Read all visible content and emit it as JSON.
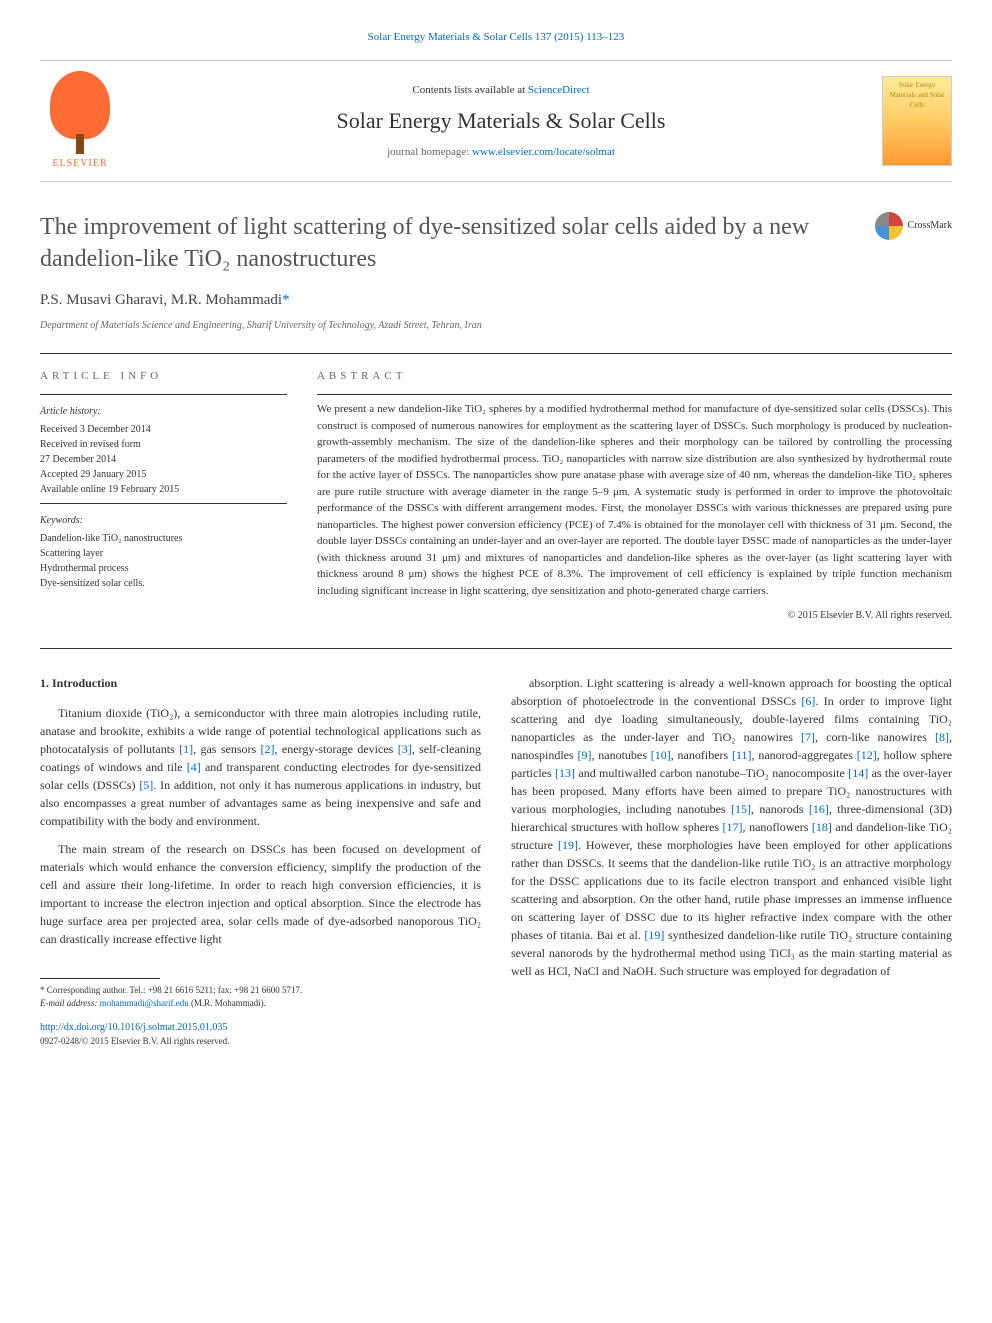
{
  "header_link": "Solar Energy Materials & Solar Cells 137 (2015) 113–123",
  "banner": {
    "contents_line_prefix": "Contents lists available at ",
    "contents_link": "ScienceDirect",
    "journal_title": "Solar Energy Materials & Solar Cells",
    "homepage_prefix": "journal homepage: ",
    "homepage_link": "www.elsevier.com/locate/solmat",
    "elsevier_label": "ELSEVIER",
    "cover_text": "Solar Energy Materials and Solar Cells"
  },
  "crossmark_label": "CrossMark",
  "article": {
    "title": "The improvement of light scattering of dye-sensitized solar cells aided by a new dandelion-like TiO₂ nanostructures",
    "authors": "P.S. Musavi Gharavi, M.R. Mohammadi",
    "corresponding_mark": "*",
    "affiliation": "Department of Materials Science and Engineering, Sharif University of Technology, Azadi Street, Tehran, Iran"
  },
  "info": {
    "heading": "ARTICLE INFO",
    "history_label": "Article history:",
    "history_lines": [
      "Received 3 December 2014",
      "Received in revised form",
      "27 December 2014",
      "Accepted 29 January 2015",
      "Available online 19 February 2015"
    ],
    "keywords_label": "Keywords:",
    "keywords": [
      "Dandelion-like TiO₂ nanostructures",
      "Scattering layer",
      "Hydrothermal process",
      "Dye-sensitized solar cells."
    ]
  },
  "abstract": {
    "heading": "ABSTRACT",
    "text": "We present a new dandelion-like TiO₂ spheres by a modified hydrothermal method for manufacture of dye-sensitized solar cells (DSSCs). This construct is composed of numerous nanowires for employment as the scattering layer of DSSCs. Such morphology is produced by nucleation-growth-assembly mechanism. The size of the dandelion-like spheres and their morphology can be tailored by controlling the processing parameters of the modified hydrothermal process. TiO₂ nanoparticles with narrow size distribution are also synthesized by hydrothermal route for the active layer of DSSCs. The nanoparticles show pure anatase phase with average size of 40 nm, whereas the dandelion-like TiO₂ spheres are pure rutile structure with average diameter in the range 5–9 μm. A systematic study is performed in order to improve the photovoltaic performance of the DSSCs with different arrangement modes. First, the monolayer DSSCs with various thicknesses are prepared using pure nanoparticles. The highest power conversion efficiency (PCE) of 7.4% is obtained for the monolayer cell with thickness of 31 μm. Second, the double layer DSSCs containing an under-layer and an over-layer are reported. The double layer DSSC made of nanoparticles as the under-layer (with thickness around 31 μm) and mixtures of nanoparticles and dandelion-like spheres as the over-layer (as light scattering layer with thickness around 8 μm) shows the highest PCE of 8.3%. The improvement of cell efficiency is explained by triple function mechanism including significant increase in light scattering, dye sensitization and photo-generated charge carriers.",
    "copyright": "© 2015 Elsevier B.V. All rights reserved."
  },
  "body": {
    "section_title": "1. Introduction",
    "left_p1": "Titanium dioxide (TiO₂), a semiconductor with three main alotropies including rutile, anatase and brookite, exhibits a wide range of potential technological applications such as photocatalysis of pollutants [1], gas sensors [2], energy-storage devices [3], self-cleaning coatings of windows and tile [4] and transparent conducting electrodes for dye-sensitized solar cells (DSSCs) [5]. In addition, not only it has numerous applications in industry, but also encompasses a great number of advantages same as being inexpensive and safe and compatibility with the body and environment.",
    "left_p2": "The main stream of the research on DSSCs has been focused on development of materials which would enhance the conversion efficiency, simplify the production of the cell and assure their long-lifetime. In order to reach high conversion efficiencies, it is important to increase the electron injection and optical absorption. Since the electrode has huge surface area per projected area, solar cells made of dye-adsorbed nanoporous TiO₂ can drastically increase effective light",
    "right_p1": "absorption. Light scattering is already a well-known approach for boosting the optical absorption of photoelectrode in the conventional DSSCs [6]. In order to improve light scattering and dye loading simultaneously, double-layered films containing TiO₂ nanoparticles as the under-layer and TiO₂ nanowires [7], corn-like nanowires [8], nanospindles [9], nanotubes [10], nanofibers [11], nanorod-aggregates [12], hollow sphere particles [13] and multiwalled carbon nanotube–TiO₂ nanocomposite [14] as the over-layer has been proposed. Many efforts have been aimed to prepare TiO₂ nanostructures with various morphologies, including nanotubes [15], nanorods [16], three-dimensional (3D) hierarchical structures with hollow spheres [17], nanoflowers [18] and dandelion-like TiO₂ structure [19]. However, these morphologies have been employed for other applications rather than DSSCs. It seems that the dandelion-like rutile TiO₂ is an attractive morphology for the DSSC applications due to its facile electron transport and enhanced visible light scattering and absorption. On the other hand, rutile phase impresses an immense influence on scattering layer of DSSC due to its higher refractive index compare with the other phases of titania. Bai et al. [19] synthesized dandelion-like rutile TiO₂ structure containing several nanorods by the hydrothermal method using TiCl₃ as the main starting material as well as HCl, NaCl and NaOH. Such structure was employed for degradation of"
  },
  "footer": {
    "corresponding": "* Corresponding author. Tel.: +98 21 6616 5211; fax: +98 21 6600 5717.",
    "email_label": "E-mail address: ",
    "email": "mohammadi@sharif.edu",
    "email_suffix": " (M.R. Mohammadi).",
    "doi": "http://dx.doi.org/10.1016/j.solmat.2015.01.035",
    "issn_line": "0927-0248/© 2015 Elsevier B.V. All rights reserved."
  },
  "colors": {
    "link": "#0066cc",
    "elsevier_orange": "#ff6b35",
    "text": "#333333",
    "muted": "#666666"
  }
}
